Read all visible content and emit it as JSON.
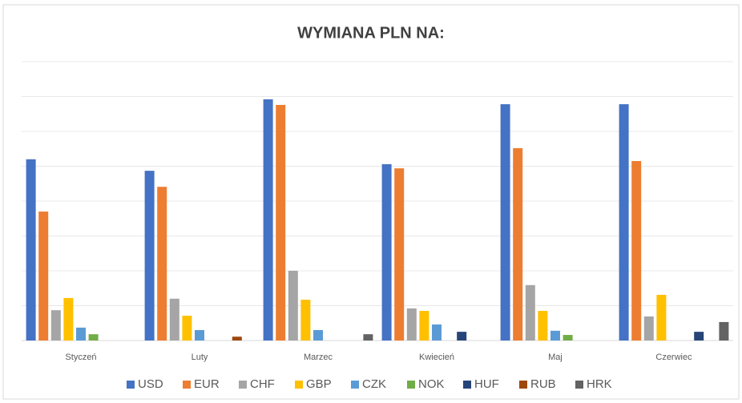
{
  "chart_data": {
    "type": "bar",
    "title": "WYMIANA PLN NA:",
    "categories": [
      "Styczeń",
      "Luty",
      "Marzec",
      "Kwiecień",
      "Maj",
      "Czerwiec"
    ],
    "series": [
      {
        "name": "USD",
        "color": "#4472c4",
        "values": [
          5.2,
          4.87,
          6.92,
          5.06,
          6.78,
          6.78
        ]
      },
      {
        "name": "EUR",
        "color": "#ed7d31",
        "values": [
          3.7,
          4.41,
          6.76,
          4.94,
          5.52,
          5.15
        ]
      },
      {
        "name": "CHF",
        "color": "#a5a5a5",
        "values": [
          0.87,
          1.2,
          2.0,
          0.92,
          1.59,
          0.69
        ]
      },
      {
        "name": "GBP",
        "color": "#ffc000",
        "values": [
          1.22,
          0.71,
          1.17,
          0.85,
          0.85,
          1.31
        ]
      },
      {
        "name": "CZK",
        "color": "#5b9bd5",
        "values": [
          0.37,
          0.3,
          0.3,
          0.46,
          0.28,
          0
        ]
      },
      {
        "name": "NOK",
        "color": "#70ad47",
        "values": [
          0.18,
          0,
          0,
          0,
          0.16,
          0
        ]
      },
      {
        "name": "HUF",
        "color": "#264478",
        "values": [
          0,
          0,
          0,
          0.25,
          0,
          0.25
        ]
      },
      {
        "name": "RUB",
        "color": "#9e480e",
        "values": [
          0,
          0.11,
          0,
          0,
          0,
          0
        ]
      },
      {
        "name": "HRK",
        "color": "#636363",
        "values": [
          0,
          0,
          0.18,
          0,
          0,
          0.53
        ]
      }
    ],
    "ylim": [
      0,
      8
    ],
    "yticks": [
      0,
      1,
      2,
      3,
      4,
      5,
      6,
      7,
      8
    ],
    "grid": true,
    "legend": "bottom"
  }
}
